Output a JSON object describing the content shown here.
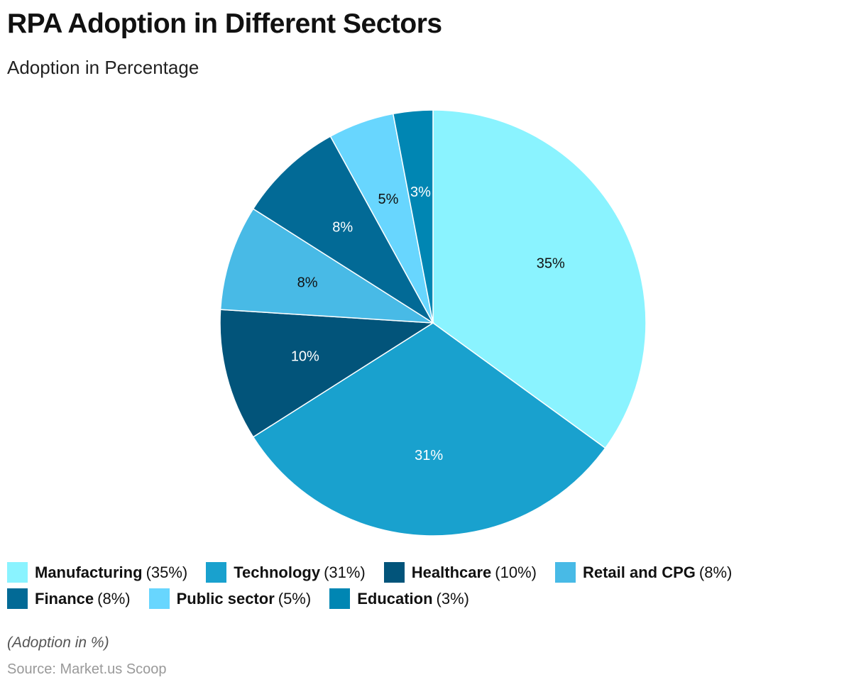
{
  "chart_data": {
    "type": "pie",
    "title": "RPA Adoption in Different Sectors",
    "subtitle": "Adoption in Percentage",
    "categories": [
      "Manufacturing",
      "Technology",
      "Healthcare",
      "Retail and CPG",
      "Finance",
      "Public sector",
      "Education"
    ],
    "values": [
      35,
      31,
      10,
      8,
      8,
      5,
      3
    ],
    "data_labels": [
      "35%",
      "31%",
      "10%",
      "8%",
      "8%",
      "5%",
      "3%"
    ],
    "legend_values": [
      "(35%)",
      "(31%)",
      "(10%)",
      "(8%)",
      "(8%)",
      "(5%)",
      "(3%)"
    ],
    "colors": [
      "#8AF3FF",
      "#19A1CE",
      "#02547A",
      "#48BAE6",
      "#026A96",
      "#68D6FE",
      "#0086B3"
    ],
    "label_colors": [
      "#111111",
      "#ffffff",
      "#ffffff",
      "#111111",
      "#ffffff",
      "#111111",
      "#ffffff"
    ],
    "legend_placement": "bottom",
    "note": "(Adoption in %)",
    "source": "Source: Market.us Scoop"
  }
}
